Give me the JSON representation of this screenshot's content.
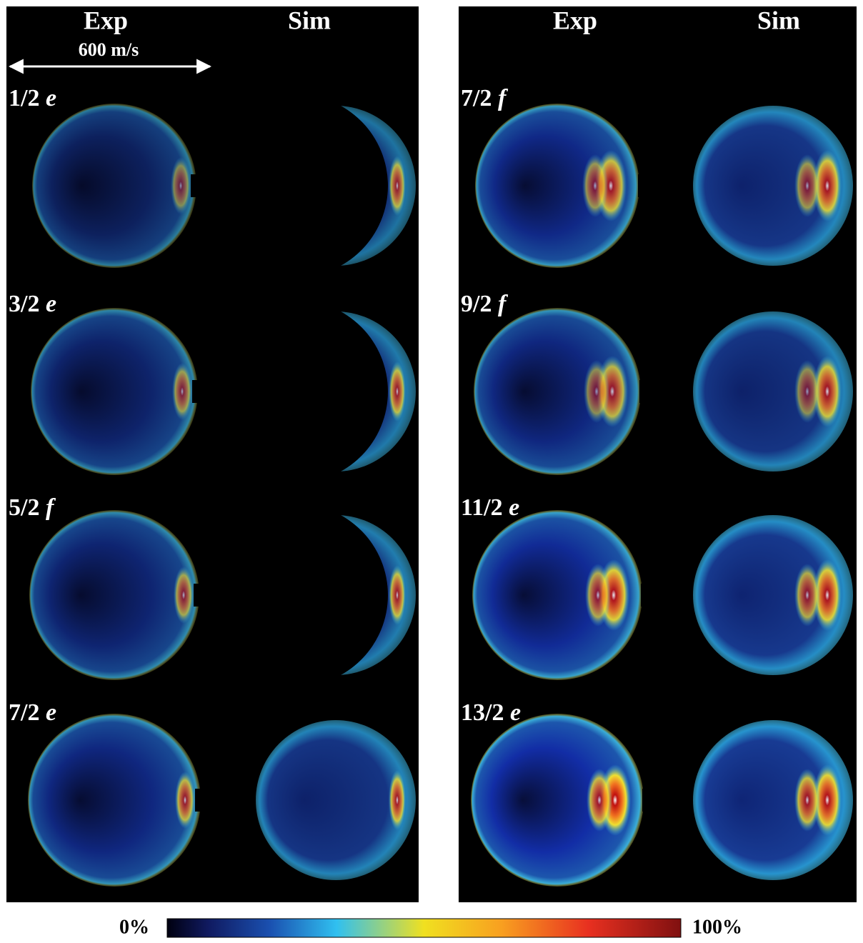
{
  "panels": [
    {
      "headers": [
        "Exp",
        "Sim"
      ],
      "scale_label": "600 m/s",
      "rows": [
        {
          "fraction": "1/2",
          "parity": "e"
        },
        {
          "fraction": "3/2",
          "parity": "e"
        },
        {
          "fraction": "5/2",
          "parity": "f"
        },
        {
          "fraction": "7/2",
          "parity": "e"
        }
      ]
    },
    {
      "headers": [
        "Exp",
        "Sim"
      ],
      "rows": [
        {
          "fraction": "7/2",
          "parity": "f"
        },
        {
          "fraction": "9/2",
          "parity": "f"
        },
        {
          "fraction": "11/2",
          "parity": "e"
        },
        {
          "fraction": "13/2",
          "parity": "e"
        }
      ]
    }
  ],
  "colorbar": {
    "min_label": "0%",
    "max_label": "100%"
  }
}
